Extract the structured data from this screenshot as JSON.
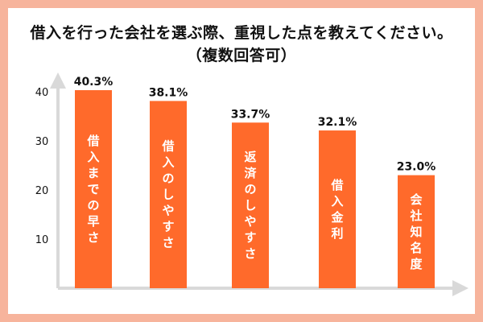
{
  "colors": {
    "background": "#f7b49c",
    "bar": "#ff6a2b",
    "axis": "#d9d9d9",
    "text": "#111111",
    "bar_text": "#ffffff"
  },
  "chart_data": {
    "type": "bar",
    "title": "借入を行った会社を選ぶ際、重視した点を教えてください。",
    "subtitle": "（複数回答可）",
    "xlabel": "",
    "ylabel": "",
    "categories": [
      "借入までの早さ",
      "借入のしやすさ",
      "返済のしやすさ",
      "借入金利",
      "会社知名度"
    ],
    "values": [
      40.3,
      38.1,
      33.7,
      32.1,
      23.0
    ],
    "value_labels": [
      "40.3%",
      "38.1%",
      "33.7%",
      "32.1%",
      "23.0%"
    ],
    "y_ticks": [
      10,
      20,
      30,
      40
    ],
    "ylim": [
      0,
      43
    ],
    "grid": false,
    "legend": "none"
  }
}
